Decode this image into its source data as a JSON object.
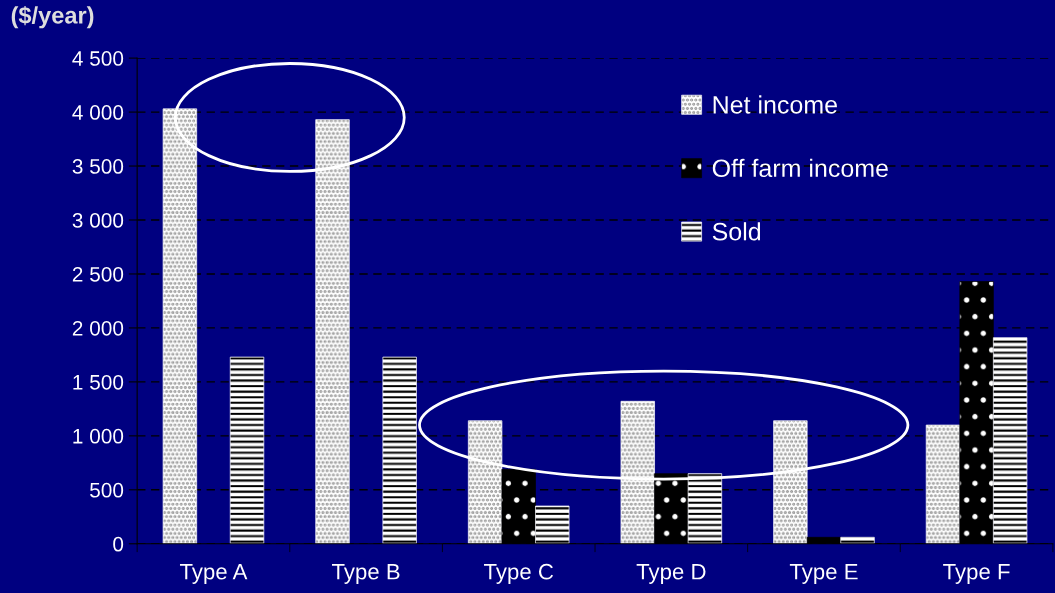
{
  "chart_data": {
    "type": "bar",
    "ylabel": "($/year)",
    "categories": [
      "Type A",
      "Type B",
      "Type C",
      "Type D",
      "Type E",
      "Type F"
    ],
    "series": [
      {
        "name": "Net income",
        "color": "#ffffff",
        "values": [
          4030,
          3930,
          1140,
          1320,
          1140,
          1100
        ]
      },
      {
        "name": "Off farm income",
        "color": "#000000",
        "values": [
          null,
          null,
          690,
          650,
          60,
          2430
        ]
      },
      {
        "name": "Sold",
        "color": "#ffffff",
        "values": [
          1730,
          1730,
          350,
          650,
          60,
          1910
        ]
      }
    ],
    "ylim": [
      0,
      4500
    ],
    "yticks": [
      0,
      500,
      {
        "value": 1000,
        "label": "1 000"
      },
      {
        "value": 1500,
        "label": "1 500"
      },
      {
        "value": 2000,
        "label": "2 000"
      },
      {
        "value": 2500,
        "label": "2 500"
      },
      {
        "value": 3000,
        "label": "3 000"
      },
      {
        "value": 3500,
        "label": "3 500"
      },
      {
        "value": 4000,
        "label": "4 000"
      },
      {
        "value": 4500,
        "label": "4 500"
      }
    ],
    "grid": "y",
    "legend": "top right"
  }
}
